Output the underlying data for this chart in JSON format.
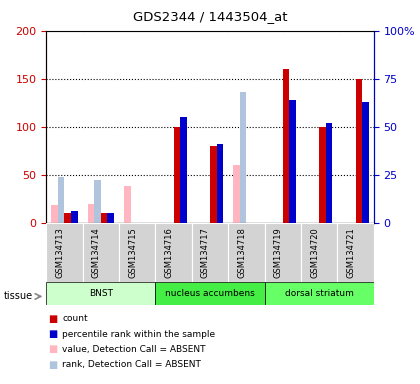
{
  "title": "GDS2344 / 1443504_at",
  "samples": [
    "GSM134713",
    "GSM134714",
    "GSM134715",
    "GSM134716",
    "GSM134717",
    "GSM134718",
    "GSM134719",
    "GSM134720",
    "GSM134721"
  ],
  "count_red": [
    10,
    10,
    0,
    100,
    80,
    0,
    160,
    100,
    150
  ],
  "percentile_blue": [
    12,
    10,
    0,
    110,
    82,
    0,
    128,
    104,
    126
  ],
  "value_absent_pink": [
    18,
    20,
    38,
    0,
    0,
    60,
    0,
    0,
    0
  ],
  "rank_absent_lightblue": [
    24,
    22,
    0,
    0,
    0,
    68,
    0,
    0,
    0
  ],
  "tissues": [
    {
      "label": "BNST",
      "start": 0,
      "end": 3,
      "color": "#CCFFCC"
    },
    {
      "label": "nucleus accumbens",
      "start": 3,
      "end": 6,
      "color": "#44EE44"
    },
    {
      "label": "dorsal striatum",
      "start": 6,
      "end": 9,
      "color": "#66FF66"
    }
  ],
  "ylim_left": [
    0,
    200
  ],
  "ylim_right": [
    0,
    100
  ],
  "yticks_left": [
    0,
    50,
    100,
    150,
    200
  ],
  "yticks_right": [
    0,
    25,
    50,
    75,
    100
  ],
  "yticklabels_right": [
    "0",
    "25",
    "50",
    "75",
    "100%"
  ],
  "bar_width": 0.18,
  "color_red": "#CC0000",
  "color_blue": "#0000CC",
  "color_pink": "#FFB6C1",
  "color_lightblue": "#B0C4DE",
  "left_axis_color": "#CC0000",
  "right_axis_color": "#0000CC",
  "bg_label": "#D3D3D3"
}
